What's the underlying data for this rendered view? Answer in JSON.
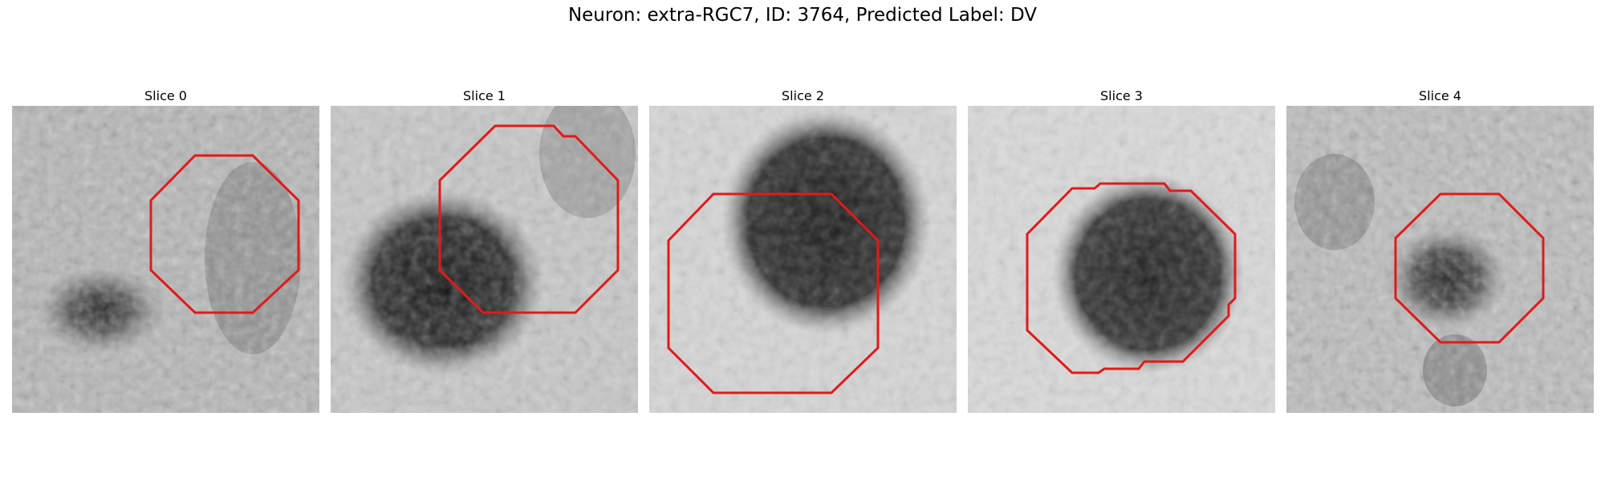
{
  "figure": {
    "title": "Neuron: extra-RGC7, ID: 3764, Predicted Label: DV"
  },
  "panels": [
    {
      "title": "Slice 0"
    },
    {
      "title": "Slice 1"
    },
    {
      "title": "Slice 2"
    },
    {
      "title": "Slice 3"
    },
    {
      "title": "Slice 4"
    }
  ],
  "colors": {
    "roi_outline": "#e11a1a",
    "background": "#ffffff"
  }
}
